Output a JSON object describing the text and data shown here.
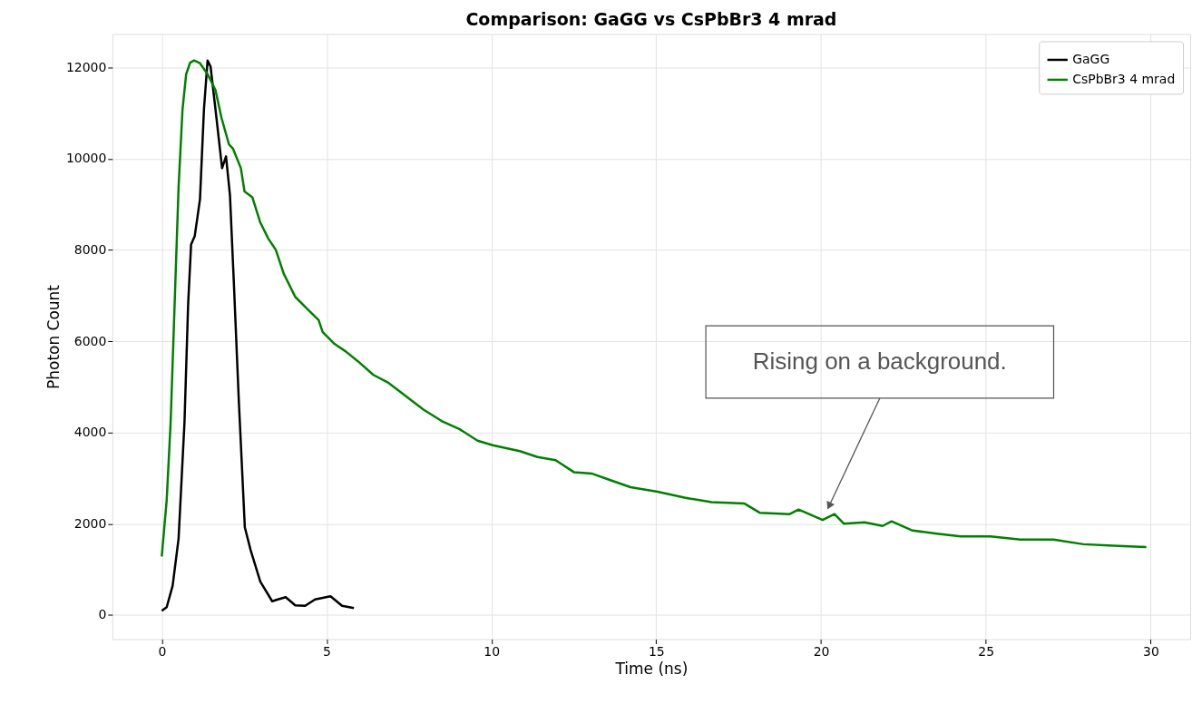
{
  "chart_data": {
    "type": "line",
    "title": "Comparison: GaGG vs CsPbBr3 4 mrad",
    "xlabel": "Time (ns)",
    "ylabel": "Photon Count",
    "xlim": [
      -1.5,
      31.2
    ],
    "ylim": [
      -530,
      12730
    ],
    "xticks": [
      0,
      5,
      10,
      15,
      20,
      25,
      30
    ],
    "yticks": [
      0,
      2000,
      4000,
      6000,
      8000,
      10000,
      12000
    ],
    "grid": true,
    "legend": "top right",
    "marker": "none",
    "line_style": "solid",
    "annotations": [
      "Rising on a background."
    ],
    "series": [
      {
        "name": "GaGG",
        "color": "#000000",
        "x": [
          0,
          0.15,
          0.33,
          0.51,
          0.69,
          0.8,
          0.89,
          1.0,
          1.16,
          1.28,
          1.39,
          1.48,
          1.63,
          1.83,
          1.95,
          2.07,
          2.19,
          2.34,
          2.52,
          2.7,
          2.99,
          3.35,
          3.52,
          3.76,
          4.05,
          4.35,
          4.65,
          5.12,
          5.47,
          5.83
        ],
        "values": [
          90,
          170,
          640,
          1670,
          4230,
          6800,
          8120,
          8300,
          9110,
          11080,
          12150,
          12020,
          11080,
          9790,
          10050,
          9190,
          7230,
          4660,
          1920,
          1410,
          730,
          300,
          340,
          390,
          210,
          200,
          340,
          410,
          200,
          150
        ]
      },
      {
        "name": "CsPbBr3 4 mrad",
        "color": "#008000",
        "x": [
          0,
          0.15,
          0.27,
          0.39,
          0.51,
          0.63,
          0.74,
          0.86,
          0.98,
          1.16,
          1.39,
          1.63,
          1.81,
          2.04,
          2.16,
          2.4,
          2.51,
          2.75,
          2.99,
          3.23,
          3.46,
          3.7,
          4.05,
          4.41,
          4.76,
          4.88,
          5.24,
          5.59,
          5.95,
          6.42,
          6.85,
          7.4,
          7.94,
          8.49,
          9.04,
          9.58,
          10.04,
          10.86,
          11.4,
          11.95,
          12.5,
          13.04,
          13.59,
          14.22,
          15.04,
          15.86,
          16.68,
          17.68,
          18.14,
          19.05,
          19.32,
          20.05,
          20.41,
          20.69,
          21.32,
          21.87,
          22.14,
          22.78,
          23.51,
          24.24,
          25.14,
          26.05,
          27.05,
          27.96,
          28.87,
          29.51,
          29.87
        ],
        "values": [
          1280,
          2520,
          4230,
          6800,
          9370,
          11080,
          11850,
          12100,
          12150,
          12090,
          11850,
          11500,
          10900,
          10310,
          10220,
          9790,
          9280,
          9150,
          8600,
          8250,
          8000,
          7480,
          6970,
          6710,
          6460,
          6200,
          5940,
          5770,
          5560,
          5260,
          5100,
          4800,
          4500,
          4250,
          4070,
          3820,
          3720,
          3590,
          3460,
          3390,
          3130,
          3100,
          2960,
          2800,
          2700,
          2570,
          2470,
          2440,
          2240,
          2210,
          2310,
          2080,
          2210,
          2000,
          2030,
          1950,
          2050,
          1850,
          1780,
          1720,
          1720,
          1650,
          1650,
          1550,
          1520,
          1500,
          1490
        ]
      }
    ]
  }
}
